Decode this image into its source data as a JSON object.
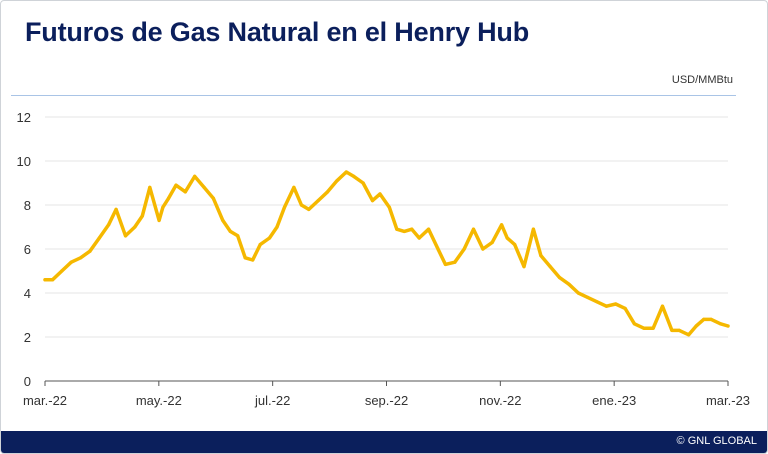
{
  "title": "Futuros de Gas Natural en el Henry Hub",
  "unit_label": "USD/MMBtu",
  "footer_text": "© GNL GLOBAL",
  "colors": {
    "title": "#0b1f5c",
    "line": "#f5b800",
    "footer": "#0b1f5c",
    "grid": "#e6e6e6"
  },
  "chart_data": {
    "type": "line",
    "title": "Futuros de Gas Natural en el Henry Hub",
    "ylabel": "USD/MMBtu",
    "ylim": [
      0,
      12
    ],
    "yticks": [
      "0",
      "2",
      "4",
      "6",
      "8",
      "10",
      "12"
    ],
    "xticks": [
      "mar.-22",
      "may.-22",
      "jul.-22",
      "sep.-22",
      "nov.-22",
      "ene.-23",
      "mar.-23"
    ],
    "grid": true,
    "series": [
      {
        "x": [
          "2022-03-01",
          "2022-03-05",
          "2022-03-10",
          "2022-03-15",
          "2022-03-20",
          "2022-03-25",
          "2022-03-30",
          "2022-04-04",
          "2022-04-08",
          "2022-04-13",
          "2022-04-18",
          "2022-04-22",
          "2022-04-26",
          "2022-05-01",
          "2022-05-03",
          "2022-05-06",
          "2022-05-10",
          "2022-05-15",
          "2022-05-20",
          "2022-05-25",
          "2022-05-30",
          "2022-06-04",
          "2022-06-08",
          "2022-06-12",
          "2022-06-16",
          "2022-06-20",
          "2022-06-24",
          "2022-06-29",
          "2022-07-03",
          "2022-07-07",
          "2022-07-12",
          "2022-07-16",
          "2022-07-20",
          "2022-07-25",
          "2022-07-30",
          "2022-08-04",
          "2022-08-09",
          "2022-08-13",
          "2022-08-18",
          "2022-08-23",
          "2022-08-27",
          "2022-09-01",
          "2022-09-05",
          "2022-09-09",
          "2022-09-13",
          "2022-09-17",
          "2022-09-22",
          "2022-09-27",
          "2022-10-01",
          "2022-10-06",
          "2022-10-11",
          "2022-10-16",
          "2022-10-21",
          "2022-10-26",
          "2022-10-31",
          "2022-11-03",
          "2022-11-07",
          "2022-11-12",
          "2022-11-17",
          "2022-11-21",
          "2022-11-26",
          "2022-12-01",
          "2022-12-06",
          "2022-12-11",
          "2022-12-16",
          "2022-12-21",
          "2022-12-26",
          "2022-12-31",
          "2023-01-05",
          "2023-01-10",
          "2023-01-15",
          "2023-01-20",
          "2023-01-25",
          "2023-01-30",
          "2023-02-03",
          "2023-02-08",
          "2023-02-12",
          "2023-02-16",
          "2023-02-20",
          "2023-02-25",
          "2023-03-01"
        ],
        "values": [
          4.6,
          4.6,
          5.0,
          5.4,
          5.6,
          5.9,
          6.5,
          7.1,
          7.8,
          6.6,
          7.0,
          7.5,
          8.8,
          7.3,
          7.9,
          8.3,
          8.9,
          8.6,
          9.3,
          8.8,
          8.3,
          7.3,
          6.8,
          6.6,
          5.6,
          5.5,
          6.2,
          6.5,
          7.0,
          7.9,
          8.8,
          8.0,
          7.8,
          8.2,
          8.6,
          9.1,
          9.5,
          9.3,
          9.0,
          8.2,
          8.5,
          7.9,
          6.9,
          6.8,
          6.9,
          6.5,
          6.9,
          6.0,
          5.3,
          5.4,
          6.0,
          6.9,
          6.0,
          6.3,
          7.1,
          6.5,
          6.2,
          5.2,
          6.9,
          5.7,
          5.2,
          4.7,
          4.4,
          4.0,
          3.8,
          3.6,
          3.4,
          3.5,
          3.3,
          2.6,
          2.4,
          2.4,
          3.4,
          2.3,
          2.3,
          2.1,
          2.5,
          2.8,
          2.8,
          2.6,
          2.5
        ]
      }
    ]
  }
}
